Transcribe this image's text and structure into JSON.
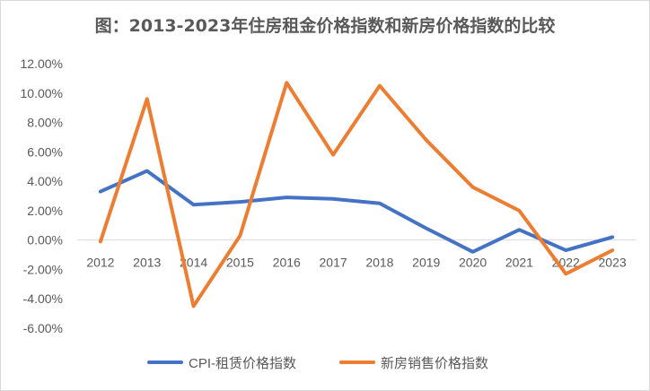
{
  "chart_data": {
    "type": "line",
    "title": "图：2013-2023年住房租金价格指数和新房价格指数的比较",
    "categories": [
      "2012",
      "2013",
      "2014",
      "2015",
      "2016",
      "2017",
      "2018",
      "2019",
      "2020",
      "2021",
      "2022",
      "2023"
    ],
    "ylim": [
      -6,
      12
    ],
    "ytick_step": 2,
    "ytick_labels": [
      "12.00%",
      "10.00%",
      "8.00%",
      "6.00%",
      "4.00%",
      "2.00%",
      "0.00%",
      "-2.00%",
      "-4.00%",
      "-6.00%"
    ],
    "grid": false,
    "legend_position": "bottom",
    "series": [
      {
        "name": "CPI-租赁价格指数",
        "color": "#4472c4",
        "values": [
          3.3,
          4.7,
          2.4,
          2.6,
          2.9,
          2.8,
          2.5,
          0.8,
          -0.8,
          0.7,
          -0.7,
          0.2
        ]
      },
      {
        "name": "新房销售价格指数",
        "color": "#ed7d31",
        "values": [
          -0.1,
          9.6,
          -4.5,
          0.3,
          10.7,
          5.8,
          10.5,
          6.8,
          3.6,
          2.0,
          -2.3,
          -0.7
        ]
      }
    ]
  }
}
